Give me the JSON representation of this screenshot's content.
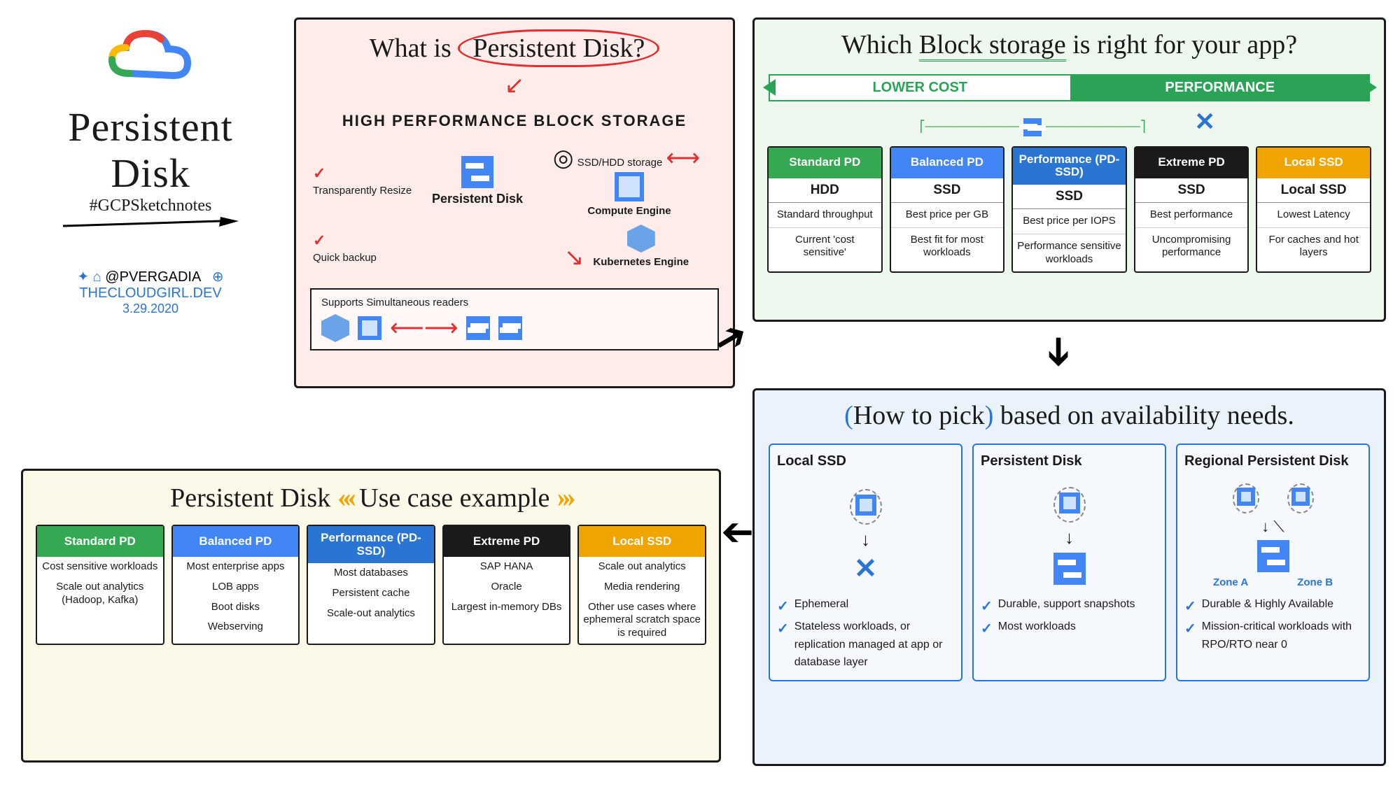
{
  "meta": {
    "main_title_1": "Persistent",
    "main_title_2": "Disk",
    "hashtag": "#GCPSketchnotes",
    "author": "@PVERGADIA",
    "site": "THECLOUDGIRL.DEV",
    "date": "3.29.2020",
    "logo_colors": [
      "#ea4335",
      "#fbbc04",
      "#34a853",
      "#4285f4",
      "#ffffff"
    ]
  },
  "whatis": {
    "title_prefix": "What is",
    "title_circled": "Persistent Disk?",
    "subhead": "HIGH PERFORMANCE BLOCK STORAGE",
    "feat1": "Transparently Resize",
    "feat2": "Quick backup",
    "pd_label": "Persistent Disk",
    "ssdhdd": "SSD/HDD storage",
    "ce_label": "Compute Engine",
    "ke_label": "Kubernetes Engine",
    "readers": "Supports Simultaneous readers",
    "bg": "#fdecea",
    "accent": "#e03030"
  },
  "which": {
    "title_a": "Which",
    "title_b": "Block storage",
    "title_c": "is right for your app?",
    "spectrum_left": "LOWER COST",
    "spectrum_right": "PERFORMANCE",
    "cards": [
      {
        "header": "Standard PD",
        "color": "#34a853",
        "type": "HDD",
        "lines": [
          "Standard throughput",
          "Current 'cost sensitive'"
        ]
      },
      {
        "header": "Balanced PD",
        "color": "#4285f4",
        "type": "SSD",
        "lines": [
          "Best price per GB",
          "Best fit for most workloads"
        ]
      },
      {
        "header": "Performance (PD-SSD)",
        "color": "#2a75d1",
        "type": "SSD",
        "lines": [
          "Best price per IOPS",
          "Performance sensitive workloads"
        ]
      },
      {
        "header": "Extreme PD",
        "color": "#1a1a1a",
        "type": "SSD",
        "lines": [
          "Best performance",
          "Uncompromising performance"
        ]
      },
      {
        "header": "Local SSD",
        "color": "#f0a400",
        "type": "Local SSD",
        "lines": [
          "Lowest Latency",
          "For caches and hot layers"
        ]
      }
    ],
    "bg": "#edf7ed"
  },
  "usecase": {
    "title_a": "Persistent Disk",
    "title_b": "Use case example",
    "cards": [
      {
        "header": "Standard PD",
        "color": "#34a853",
        "lines": [
          "Cost sensitive workloads",
          "Scale out analytics (Hadoop, Kafka)"
        ]
      },
      {
        "header": "Balanced PD",
        "color": "#4285f4",
        "lines": [
          "Most enterprise apps",
          "LOB apps",
          "Boot disks",
          "Webserving"
        ]
      },
      {
        "header": "Performance (PD-SSD)",
        "color": "#2a75d1",
        "lines": [
          "Most databases",
          "Persistent cache",
          "Scale-out analytics"
        ]
      },
      {
        "header": "Extreme PD",
        "color": "#1a1a1a",
        "lines": [
          "SAP HANA",
          "Oracle",
          "Largest in-memory DBs"
        ]
      },
      {
        "header": "Local SSD",
        "color": "#f0a400",
        "lines": [
          "Scale out analytics",
          "Media rendering",
          "Other use cases where ephemeral scratch space is required"
        ]
      }
    ],
    "bg": "#fdf9e8"
  },
  "availability": {
    "title_a": "How to pick",
    "title_b": "based on availability needs.",
    "zone_a": "Zone A",
    "zone_b": "Zone B",
    "boxes": [
      {
        "title": "Local SSD",
        "points": [
          "Ephemeral",
          "Stateless workloads, or replication managed at app or database layer"
        ],
        "iconA": "cpu",
        "iconB": "ssd"
      },
      {
        "title": "Persistent Disk",
        "points": [
          "Durable, support snapshots",
          "Most workloads"
        ],
        "iconA": "cpu",
        "iconB": "pd"
      },
      {
        "title": "Regional Persistent Disk",
        "points": [
          "Durable & Highly Available",
          "Mission-critical workloads with RPO/RTO near 0"
        ],
        "iconA": "cpu2",
        "iconB": "pd"
      }
    ],
    "bg": "#eaf2fb"
  }
}
